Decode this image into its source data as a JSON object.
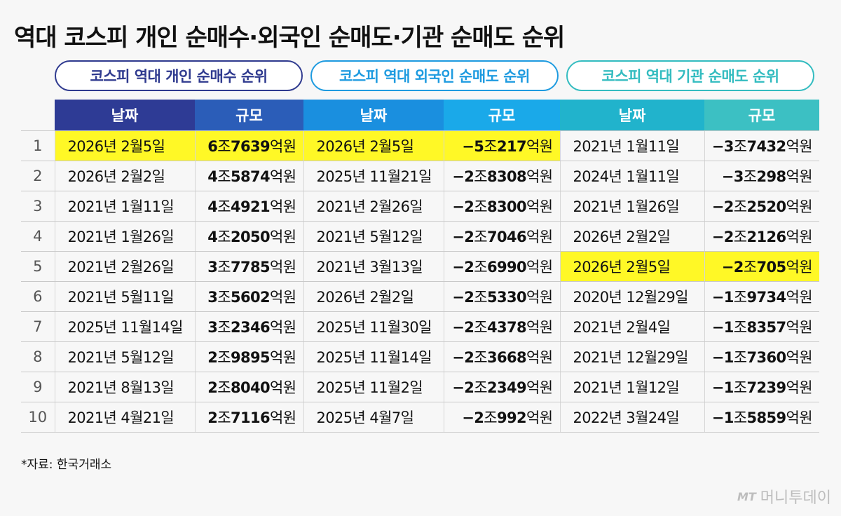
{
  "title": "역대 코스피 개인 순매수·외국인 순매도·기관 순매도 순위",
  "sections": [
    {
      "label": "코스피 역대 개인 순매수 순위"
    },
    {
      "label": "코스피 역대 외국인 순매도 순위"
    },
    {
      "label": "코스피 역대 기관 순매도 순위"
    }
  ],
  "headers": {
    "date": "날짜",
    "amount": "규모"
  },
  "rows": [
    {
      "rank": "1",
      "c1": {
        "date": "2026년 2월5일",
        "amount": "6조7639억원"
      },
      "c2": {
        "date": "2026년 2월5일",
        "amount": "−5조217억원"
      },
      "c3": {
        "date": "2021년 1월11일",
        "amount": "−3조7432억원"
      }
    },
    {
      "rank": "2",
      "c1": {
        "date": "2026년 2월2일",
        "amount": "4조5874억원"
      },
      "c2": {
        "date": "2025년 11월21일",
        "amount": "−2조8308억원"
      },
      "c3": {
        "date": "2024년 1월11일",
        "amount": "−3조298억원"
      }
    },
    {
      "rank": "3",
      "c1": {
        "date": "2021년 1월11일",
        "amount": "4조4921억원"
      },
      "c2": {
        "date": "2021년 2월26일",
        "amount": "−2조8300억원"
      },
      "c3": {
        "date": "2021년 1월26일",
        "amount": "−2조2520억원"
      }
    },
    {
      "rank": "4",
      "c1": {
        "date": "2021년 1월26일",
        "amount": "4조2050억원"
      },
      "c2": {
        "date": "2021년 5월12일",
        "amount": "−2조7046억원"
      },
      "c3": {
        "date": "2026년 2월2일",
        "amount": "−2조2126억원"
      }
    },
    {
      "rank": "5",
      "c1": {
        "date": "2021년 2월26일",
        "amount": "3조7785억원"
      },
      "c2": {
        "date": "2021년 3월13일",
        "amount": "−2조6990억원"
      },
      "c3": {
        "date": "2026년 2월5일",
        "amount": "−2조705억원"
      }
    },
    {
      "rank": "6",
      "c1": {
        "date": "2021년 5월11일",
        "amount": "3조5602억원"
      },
      "c2": {
        "date": "2026년 2월2일",
        "amount": "−2조5330억원"
      },
      "c3": {
        "date": "2020년 12월29일",
        "amount": "−1조9734억원"
      }
    },
    {
      "rank": "7",
      "c1": {
        "date": "2025년 11월14일",
        "amount": "3조2346억원"
      },
      "c2": {
        "date": "2025년 11월30일",
        "amount": "−2조4378억원"
      },
      "c3": {
        "date": "2021년 2월4일",
        "amount": "−1조8357억원"
      }
    },
    {
      "rank": "8",
      "c1": {
        "date": "2021년 5월12일",
        "amount": "2조9895억원"
      },
      "c2": {
        "date": "2025년 11월14일",
        "amount": "−2조3668억원"
      },
      "c3": {
        "date": "2021년 12월29일",
        "amount": "−1조7360억원"
      }
    },
    {
      "rank": "9",
      "c1": {
        "date": "2021년 8월13일",
        "amount": "2조8040억원"
      },
      "c2": {
        "date": "2025년 11월2일",
        "amount": "−2조2349억원"
      },
      "c3": {
        "date": "2021년 1월12일",
        "amount": "−1조7239억원"
      }
    },
    {
      "rank": "10",
      "c1": {
        "date": "2021년 4월21일",
        "amount": "2조7116억원"
      },
      "c2": {
        "date": "2025년 4월7일",
        "amount": "−2조992억원"
      },
      "c3": {
        "date": "2022년 3월24일",
        "amount": "−1조5859억원"
      }
    }
  ],
  "highlight_color": "#fff826",
  "source": "*자료: 한국거래소",
  "logo": {
    "mark": "MT",
    "text": "머니투데이"
  }
}
